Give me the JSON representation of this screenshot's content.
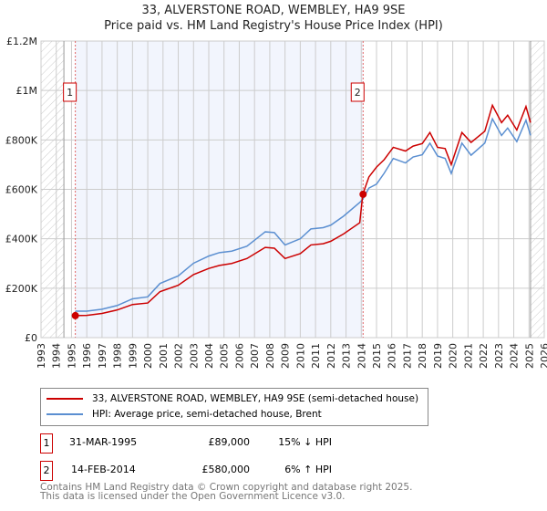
{
  "chart_data": {
    "type": "line",
    "title": "33, ALVERSTONE ROAD, WEMBLEY, HA9 9SE",
    "subtitle": "Price paid vs. HM Land Registry's House Price Index (HPI)",
    "xlim": [
      1993,
      2026
    ],
    "ylim": [
      0,
      1200000
    ],
    "x_ticks": [
      "1993",
      "1994",
      "1995",
      "1996",
      "1997",
      "1998",
      "1999",
      "2000",
      "2001",
      "2002",
      "2003",
      "2004",
      "2005",
      "2006",
      "2007",
      "2008",
      "2009",
      "2010",
      "2011",
      "2012",
      "2013",
      "2014",
      "2015",
      "2016",
      "2017",
      "2018",
      "2019",
      "2020",
      "2021",
      "2022",
      "2023",
      "2024",
      "2025",
      "2026"
    ],
    "y_ticks": [
      {
        "v": 0,
        "label": "£0"
      },
      {
        "v": 200000,
        "label": "£200K"
      },
      {
        "v": 400000,
        "label": "£400K"
      },
      {
        "v": 600000,
        "label": "£600K"
      },
      {
        "v": 800000,
        "label": "£800K"
      },
      {
        "v": 1000000,
        "label": "£1M"
      },
      {
        "v": 1200000,
        "label": "£1.2M"
      }
    ],
    "grid": true,
    "series": [
      {
        "name": "33, ALVERSTONE ROAD, WEMBLEY, HA9 9SE (semi-detached house)",
        "color": "#cc0000",
        "x": [
          1995.25,
          1996,
          1997,
          1998,
          1999,
          2000,
          2000.8,
          2002,
          2003,
          2004,
          2004.7,
          2005.5,
          2006.5,
          2007.7,
          2008.3,
          2009,
          2010,
          2010.7,
          2011.5,
          2012,
          2012.85,
          2013.9,
          2014.1,
          2014.5,
          2015,
          2015.5,
          2016.1,
          2016.9,
          2017.4,
          2018,
          2018.5,
          2019,
          2019.5,
          2019.9,
          2020.6,
          2021.2,
          2022.1,
          2022.6,
          2023.2,
          2023.6,
          2024.2,
          2024.8,
          2025.1
        ],
        "y": [
          89000,
          90000,
          98000,
          112000,
          134000,
          140000,
          186000,
          212000,
          255000,
          280000,
          292000,
          300000,
          320000,
          365000,
          362000,
          320000,
          340000,
          375000,
          380000,
          390000,
          420000,
          465000,
          580000,
          650000,
          690000,
          720000,
          770000,
          755000,
          775000,
          785000,
          830000,
          770000,
          765000,
          700000,
          830000,
          790000,
          835000,
          940000,
          870000,
          900000,
          840000,
          935000,
          870000
        ]
      },
      {
        "name": "HPI: Average price, semi-detached house, Brent",
        "color": "#5b8fd1",
        "x": [
          1995.25,
          1996,
          1997,
          1998,
          1999,
          2000,
          2000.8,
          2002,
          2003,
          2004,
          2004.7,
          2005.5,
          2006.5,
          2007.7,
          2008.3,
          2009,
          2010,
          2010.7,
          2011.5,
          2012,
          2012.85,
          2013.9,
          2014.1,
          2014.5,
          2015,
          2015.5,
          2016.1,
          2016.9,
          2017.4,
          2018,
          2018.5,
          2019,
          2019.5,
          2019.9,
          2020.6,
          2021.2,
          2022.1,
          2022.6,
          2023.2,
          2023.6,
          2024.2,
          2024.8,
          2025.1
        ],
        "y": [
          107000,
          107000,
          115000,
          130000,
          157000,
          165000,
          219000,
          250000,
          301000,
          330000,
          344000,
          350000,
          370000,
          428000,
          425000,
          375000,
          400000,
          440000,
          445000,
          455000,
          492000,
          547000,
          560000,
          605000,
          621000,
          665000,
          725000,
          707000,
          731000,
          740000,
          787000,
          735000,
          725000,
          664000,
          787000,
          738000,
          787000,
          885000,
          818000,
          848000,
          793000,
          880000,
          818000
        ]
      }
    ],
    "annotations": [
      {
        "label": "1",
        "x": 1995.25,
        "y": 89000
      },
      {
        "label": "2",
        "x": 2014.12,
        "y": 580000
      }
    ],
    "shaded_range": [
      1995.25,
      2014.12
    ],
    "hatched_ranges": [
      [
        1993,
        1994.5
      ],
      [
        2025.1,
        2026
      ]
    ]
  },
  "legend": {
    "items": [
      "33, ALVERSTONE ROAD, WEMBLEY, HA9 9SE (semi-detached house)",
      "HPI: Average price, semi-detached house, Brent"
    ]
  },
  "transactions": [
    {
      "num": "1",
      "date": "31-MAR-1995",
      "price": "£89,000",
      "hpi": "15% ↓ HPI"
    },
    {
      "num": "2",
      "date": "14-FEB-2014",
      "price": "£580,000",
      "hpi": "6% ↑ HPI"
    }
  ],
  "footer": {
    "line1": "Contains HM Land Registry data © Crown copyright and database right 2025.",
    "line2": "This data is licensed under the Open Government Licence v3.0."
  }
}
